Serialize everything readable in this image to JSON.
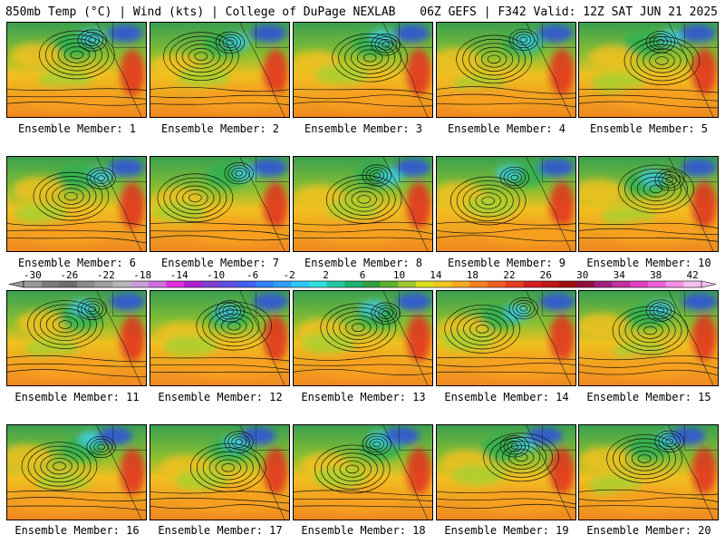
{
  "header": {
    "left_title": "850mb Temp (°C) | Wind (kts) | College of DuPage NEXLAB",
    "right_title": "06Z GEFS | F342 Valid: 12Z SAT JUN 21 2025"
  },
  "members": [
    {
      "label": "Ensemble Member: 1"
    },
    {
      "label": "Ensemble Member: 2"
    },
    {
      "label": "Ensemble Member: 3"
    },
    {
      "label": "Ensemble Member: 4"
    },
    {
      "label": "Ensemble Member: 5"
    },
    {
      "label": "Ensemble Member: 6"
    },
    {
      "label": "Ensemble Member: 7"
    },
    {
      "label": "Ensemble Member: 8"
    },
    {
      "label": "Ensemble Member: 9"
    },
    {
      "label": "Ensemble Member: 10"
    },
    {
      "label": "Ensemble Member: 11"
    },
    {
      "label": "Ensemble Member: 12"
    },
    {
      "label": "Ensemble Member: 13"
    },
    {
      "label": "Ensemble Member: 14"
    },
    {
      "label": "Ensemble Member: 15"
    },
    {
      "label": "Ensemble Member: 16"
    },
    {
      "label": "Ensemble Member: 17"
    },
    {
      "label": "Ensemble Member: 18"
    },
    {
      "label": "Ensemble Member: 19"
    },
    {
      "label": "Ensemble Member: 20"
    }
  ],
  "colorbar": {
    "ticks": [
      "-30",
      "-26",
      "-22",
      "-18",
      "-14",
      "-10",
      "-6",
      "-2",
      "2",
      "6",
      "10",
      "14",
      "18",
      "22",
      "26",
      "30",
      "34",
      "38",
      "42"
    ],
    "colors": [
      "#9a9a9a",
      "#7a7a7a",
      "#6e6e6e",
      "#8a8a8a",
      "#a0a0a0",
      "#b8b8b8",
      "#c8a0d8",
      "#d070e0",
      "#e030e0",
      "#b020d0",
      "#8040d0",
      "#6050e0",
      "#4060f0",
      "#3080ff",
      "#30a0ff",
      "#30c8ff",
      "#30e0e0",
      "#20c8a0",
      "#20b070",
      "#30a040",
      "#60b030",
      "#a0c830",
      "#e0e020",
      "#f0c820",
      "#f8a820",
      "#f88020",
      "#f06020",
      "#e84020",
      "#d82020",
      "#c01818",
      "#a01010",
      "#901040",
      "#a02080",
      "#c030a0",
      "#e040c0",
      "#f060d8",
      "#f890e8",
      "#f8c0f0"
    ]
  },
  "colors": {
    "ocean_warm": "#f0a020",
    "land_green": "#40b040",
    "cold_cyan": "#40d0e0",
    "hot_red": "#e03020"
  }
}
